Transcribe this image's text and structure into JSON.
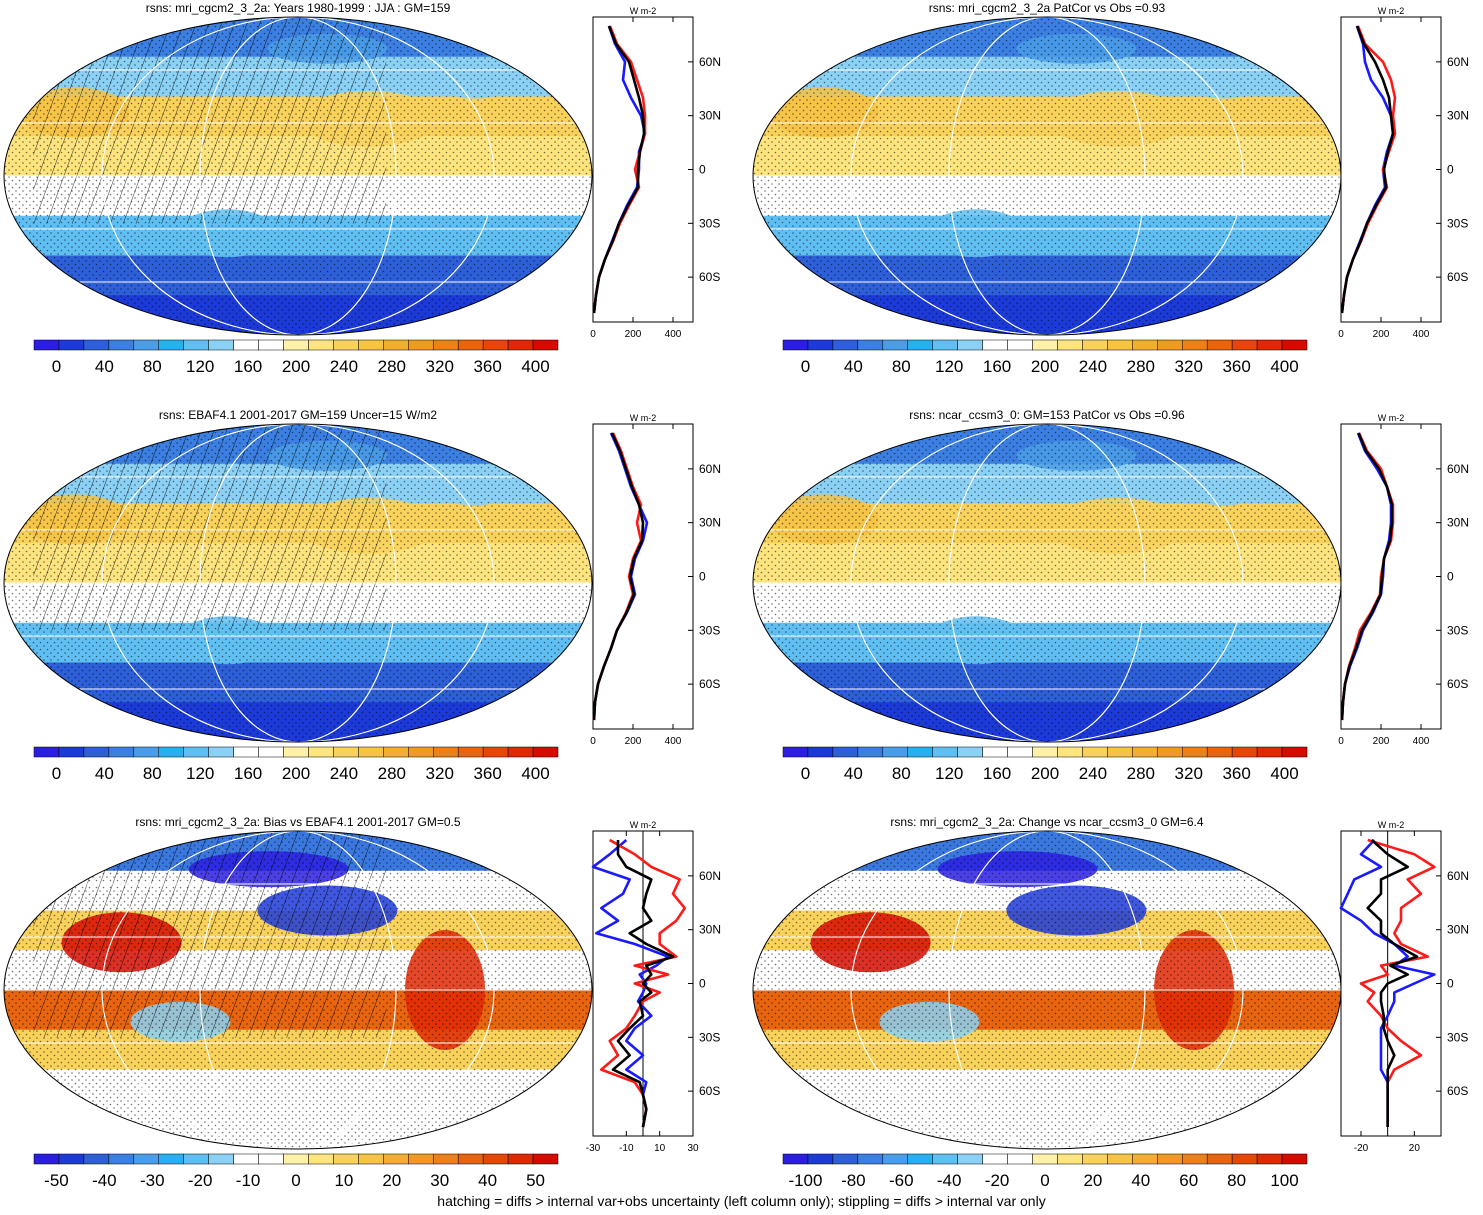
{
  "caption": "hatching = diffs > internal var+obs uncertainty (left column only); stippling = diffs > internal var only",
  "colors": {
    "ocean_cool": "#3aa0e6",
    "ocean_warm": "#f4cf57",
    "land_line": "#000000",
    "series_blue": "#1a1aff",
    "series_red": "#ff1a1a",
    "series_black": "#000000",
    "grid": "#ffffff"
  },
  "chart_data": [
    {
      "type": "heatmap",
      "title": "rsns: mri_cgcm2_3_2a: Years 1980-1999 : JJA : GM=159",
      "colorbar": {
        "ticks": [
          "0",
          "40",
          "80",
          "120",
          "160",
          "200",
          "240",
          "280",
          "320",
          "360",
          "400"
        ]
      },
      "palette": "abs",
      "hatched": true,
      "stippled": true
    },
    {
      "type": "line",
      "profile_of": 0,
      "units": "W m-2",
      "xticks": [
        "0",
        "200",
        "400"
      ],
      "xlim": [
        0,
        500
      ],
      "yticks": [
        "60N",
        "30N",
        "0",
        "30S",
        "60S"
      ],
      "ylim": [
        -85,
        85
      ],
      "lat": [
        80,
        70,
        60,
        50,
        40,
        30,
        20,
        10,
        0,
        -10,
        -20,
        -30,
        -40,
        -50,
        -60,
        -70,
        -80
      ],
      "series": [
        {
          "color": "blue",
          "values": [
            80,
            110,
            160,
            150,
            190,
            240,
            260,
            230,
            230,
            220,
            170,
            130,
            95,
            60,
            30,
            15,
            5
          ]
        },
        {
          "color": "red",
          "values": [
            85,
            120,
            190,
            220,
            250,
            260,
            260,
            235,
            210,
            230,
            180,
            135,
            100,
            60,
            30,
            15,
            5
          ]
        },
        {
          "color": "black",
          "values": [
            80,
            115,
            180,
            205,
            230,
            250,
            255,
            235,
            225,
            225,
            175,
            130,
            98,
            60,
            30,
            15,
            5
          ]
        }
      ]
    },
    {
      "type": "heatmap",
      "title": "rsns: mri_cgcm2_3_2a PatCor vs Obs =0.93",
      "colorbar": {
        "ticks": [
          "0",
          "40",
          "80",
          "120",
          "160",
          "200",
          "240",
          "280",
          "320",
          "360",
          "400"
        ]
      },
      "palette": "abs",
      "hatched": false,
      "stippled": true
    },
    {
      "type": "line",
      "profile_of": 2,
      "units": "W m-2",
      "xticks": [
        "0",
        "200",
        "400"
      ],
      "xlim": [
        0,
        500
      ],
      "yticks": [
        "60N",
        "30N",
        "0",
        "30S",
        "60S"
      ],
      "ylim": [
        -85,
        85
      ],
      "lat": [
        80,
        70,
        60,
        50,
        40,
        30,
        20,
        10,
        0,
        -10,
        -20,
        -30,
        -40,
        -50,
        -60,
        -70,
        -80
      ],
      "series": [
        {
          "color": "blue",
          "values": [
            80,
            110,
            120,
            150,
            210,
            250,
            260,
            230,
            210,
            220,
            170,
            130,
            95,
            60,
            30,
            15,
            5
          ]
        },
        {
          "color": "red",
          "values": [
            85,
            120,
            210,
            250,
            270,
            260,
            270,
            240,
            210,
            230,
            180,
            135,
            100,
            60,
            30,
            15,
            5
          ]
        },
        {
          "color": "black",
          "values": [
            80,
            115,
            170,
            210,
            240,
            250,
            260,
            235,
            215,
            225,
            175,
            130,
            98,
            60,
            30,
            15,
            5
          ]
        }
      ]
    },
    {
      "type": "heatmap",
      "title": "rsns: EBAF4.1 2001-2017 GM=159 Uncer=15 W/m2",
      "colorbar": {
        "ticks": [
          "0",
          "40",
          "80",
          "120",
          "160",
          "200",
          "240",
          "280",
          "320",
          "360",
          "400"
        ]
      },
      "palette": "abs",
      "hatched": true,
      "stippled": true
    },
    {
      "type": "line",
      "profile_of": 4,
      "units": "W m-2",
      "xticks": [
        "0",
        "200",
        "400"
      ],
      "xlim": [
        0,
        500
      ],
      "yticks": [
        "60N",
        "30N",
        "0",
        "30S",
        "60S"
      ],
      "ylim": [
        -85,
        85
      ],
      "lat": [
        80,
        70,
        60,
        50,
        40,
        30,
        20,
        10,
        0,
        -10,
        -20,
        -30,
        -40,
        -50,
        -60,
        -70,
        -80
      ],
      "series": [
        {
          "color": "blue",
          "values": [
            90,
            130,
            160,
            190,
            230,
            270,
            250,
            210,
            190,
            210,
            170,
            120,
            90,
            55,
            25,
            10,
            5
          ]
        },
        {
          "color": "red",
          "values": [
            100,
            140,
            170,
            200,
            240,
            220,
            240,
            200,
            180,
            200,
            165,
            120,
            90,
            55,
            25,
            10,
            5
          ]
        },
        {
          "color": "black",
          "values": [
            95,
            135,
            165,
            195,
            230,
            250,
            245,
            205,
            185,
            205,
            168,
            120,
            90,
            55,
            25,
            10,
            5
          ]
        }
      ]
    },
    {
      "type": "heatmap",
      "title": "rsns: ncar_ccsm3_0: GM=153 PatCor vs Obs =0.96",
      "colorbar": {
        "ticks": [
          "0",
          "40",
          "80",
          "120",
          "160",
          "200",
          "240",
          "280",
          "320",
          "360",
          "400"
        ]
      },
      "palette": "abs",
      "hatched": false,
      "stippled": true
    },
    {
      "type": "line",
      "profile_of": 6,
      "units": "W m-2",
      "xticks": [
        "0",
        "200",
        "400"
      ],
      "xlim": [
        0,
        500
      ],
      "yticks": [
        "60N",
        "30N",
        "0",
        "30S",
        "60S"
      ],
      "ylim": [
        -85,
        85
      ],
      "lat": [
        80,
        70,
        60,
        50,
        40,
        30,
        20,
        10,
        0,
        -10,
        -20,
        -30,
        -40,
        -50,
        -60,
        -70,
        -80
      ],
      "series": [
        {
          "color": "blue",
          "values": [
            85,
            120,
            180,
            230,
            250,
            250,
            240,
            215,
            210,
            200,
            160,
            110,
            80,
            45,
            20,
            10,
            5
          ]
        },
        {
          "color": "red",
          "values": [
            90,
            130,
            200,
            230,
            260,
            260,
            250,
            215,
            200,
            195,
            150,
            95,
            70,
            40,
            20,
            10,
            5
          ]
        },
        {
          "color": "black",
          "values": [
            88,
            125,
            190,
            230,
            255,
            255,
            245,
            215,
            205,
            198,
            155,
            105,
            75,
            42,
            20,
            10,
            5
          ]
        }
      ]
    },
    {
      "type": "heatmap",
      "title": "rsns: mri_cgcm2_3_2a: Bias vs EBAF4.1 2001-2017 GM=0.5",
      "colorbar": {
        "ticks": [
          "-50",
          "-40",
          "-30",
          "-20",
          "-10",
          "0",
          "10",
          "20",
          "30",
          "40",
          "50"
        ]
      },
      "palette": "diff",
      "hatched": true,
      "stippled": true
    },
    {
      "type": "line",
      "profile_of": 8,
      "units": "W m-2",
      "xticks": [
        "-30",
        "-10",
        "10",
        "30"
      ],
      "xlim": [
        -30,
        30
      ],
      "yticks": [
        "60N",
        "30N",
        "0",
        "30S",
        "60S"
      ],
      "ylim": [
        -85,
        85
      ],
      "lat": [
        80,
        72,
        65,
        58,
        50,
        42,
        35,
        28,
        22,
        15,
        10,
        5,
        0,
        -5,
        -10,
        -18,
        -25,
        -32,
        -40,
        -48,
        -55,
        -62,
        -70,
        -80
      ],
      "series": [
        {
          "color": "blue",
          "values": [
            -10,
            -20,
            -30,
            -8,
            -12,
            -25,
            -15,
            -28,
            -5,
            15,
            8,
            -2,
            2,
            0,
            -3,
            5,
            -5,
            -10,
            0,
            -10,
            2,
            0,
            2,
            0
          ]
        },
        {
          "color": "red",
          "values": [
            -20,
            -5,
            5,
            22,
            18,
            25,
            20,
            10,
            10,
            20,
            -5,
            15,
            -5,
            10,
            0,
            -5,
            -10,
            -20,
            -15,
            -25,
            -5,
            0,
            2,
            0
          ]
        },
        {
          "color": "black",
          "values": [
            -15,
            -15,
            -10,
            5,
            2,
            0,
            5,
            -8,
            2,
            18,
            2,
            5,
            0,
            5,
            -2,
            0,
            -8,
            -15,
            -8,
            -18,
            -2,
            0,
            2,
            0
          ]
        }
      ]
    },
    {
      "type": "heatmap",
      "title": "rsns: mri_cgcm2_3_2a: Change vs ncar_ccsm3_0 GM=6.4",
      "colorbar": {
        "ticks": [
          "-100",
          "-80",
          "-60",
          "-40",
          "-20",
          "0",
          "20",
          "40",
          "60",
          "80",
          "100"
        ]
      },
      "palette": "diff",
      "hatched": false,
      "stippled": true
    },
    {
      "type": "line",
      "profile_of": 10,
      "units": "W m-2",
      "xticks": [
        "-20",
        "20"
      ],
      "xlim": [
        -35,
        40
      ],
      "yticks": [
        "60N",
        "30N",
        "0",
        "30S",
        "60S"
      ],
      "ylim": [
        -85,
        85
      ],
      "lat": [
        80,
        72,
        65,
        58,
        50,
        42,
        35,
        28,
        22,
        15,
        10,
        5,
        0,
        -5,
        -10,
        -18,
        -25,
        -32,
        -40,
        -48,
        -55,
        -62,
        -70,
        -80
      ],
      "series": [
        {
          "color": "blue",
          "values": [
            -10,
            -20,
            -5,
            -25,
            -30,
            -35,
            -20,
            -10,
            5,
            15,
            5,
            35,
            20,
            5,
            5,
            0,
            -5,
            -5,
            -5,
            -5,
            0,
            0,
            0,
            0
          ]
        },
        {
          "color": "red",
          "values": [
            -15,
            20,
            35,
            15,
            25,
            10,
            10,
            5,
            10,
            30,
            -5,
            0,
            -20,
            -10,
            -15,
            -5,
            0,
            10,
            25,
            5,
            0,
            0,
            0,
            0
          ]
        },
        {
          "color": "black",
          "values": [
            -12,
            0,
            15,
            -5,
            -5,
            -15,
            -5,
            -5,
            5,
            22,
            2,
            15,
            0,
            -5,
            -5,
            -3,
            -3,
            0,
            5,
            0,
            0,
            0,
            0,
            0
          ]
        }
      ]
    }
  ]
}
